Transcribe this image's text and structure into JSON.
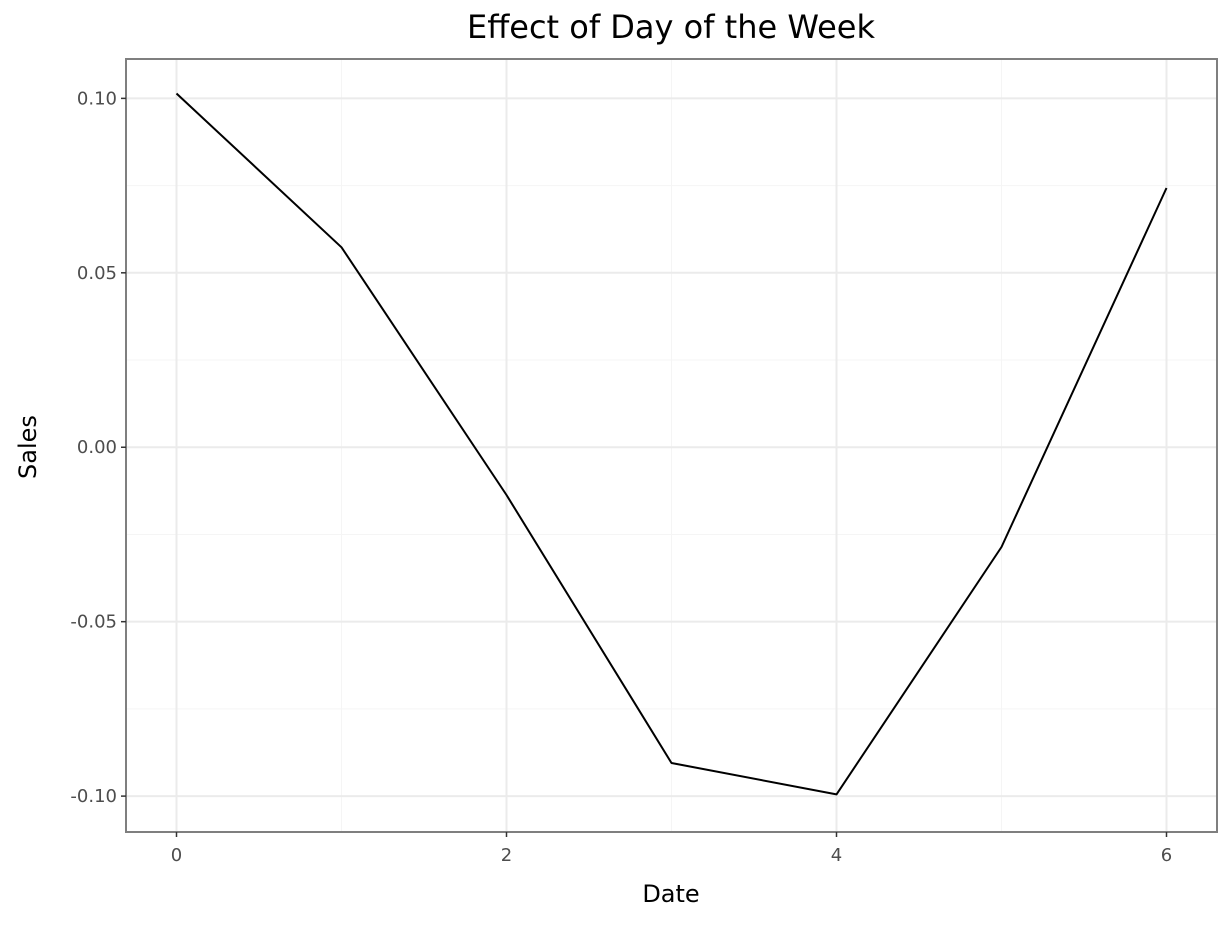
{
  "chart_data": {
    "type": "line",
    "title": "Effect of Day of the Week",
    "xlabel": "Date",
    "ylabel": "Sales",
    "x": [
      0,
      1,
      2,
      3,
      4,
      5,
      6
    ],
    "series": [
      {
        "values": [
          0.1014,
          0.0573,
          -0.0137,
          -0.0905,
          -0.0995,
          -0.0286,
          0.0743
        ]
      }
    ],
    "xlim": [
      -0.3,
      6.3
    ],
    "ylim": [
      -0.11,
      0.111
    ],
    "xticks": [
      0,
      2,
      4,
      6
    ],
    "xtick_labels": [
      "0",
      "2",
      "4",
      "6"
    ],
    "yticks": [
      0.1,
      0.05,
      0.0,
      -0.05,
      -0.1
    ],
    "ytick_labels": [
      "0.10",
      "0.05",
      "0.00",
      "-0.05",
      "-0.10"
    ],
    "x_minor_ticks": [
      1,
      3,
      5
    ],
    "y_minor_ticks": [
      0.075,
      0.025,
      -0.025,
      -0.075
    ],
    "grid": true,
    "legend": "none",
    "colors": {
      "line": "#000000",
      "panel_border": "#7f7f7f",
      "grid_major": "#ebebeb",
      "grid_minor": "#f5f5f5",
      "background": "#ffffff"
    }
  }
}
